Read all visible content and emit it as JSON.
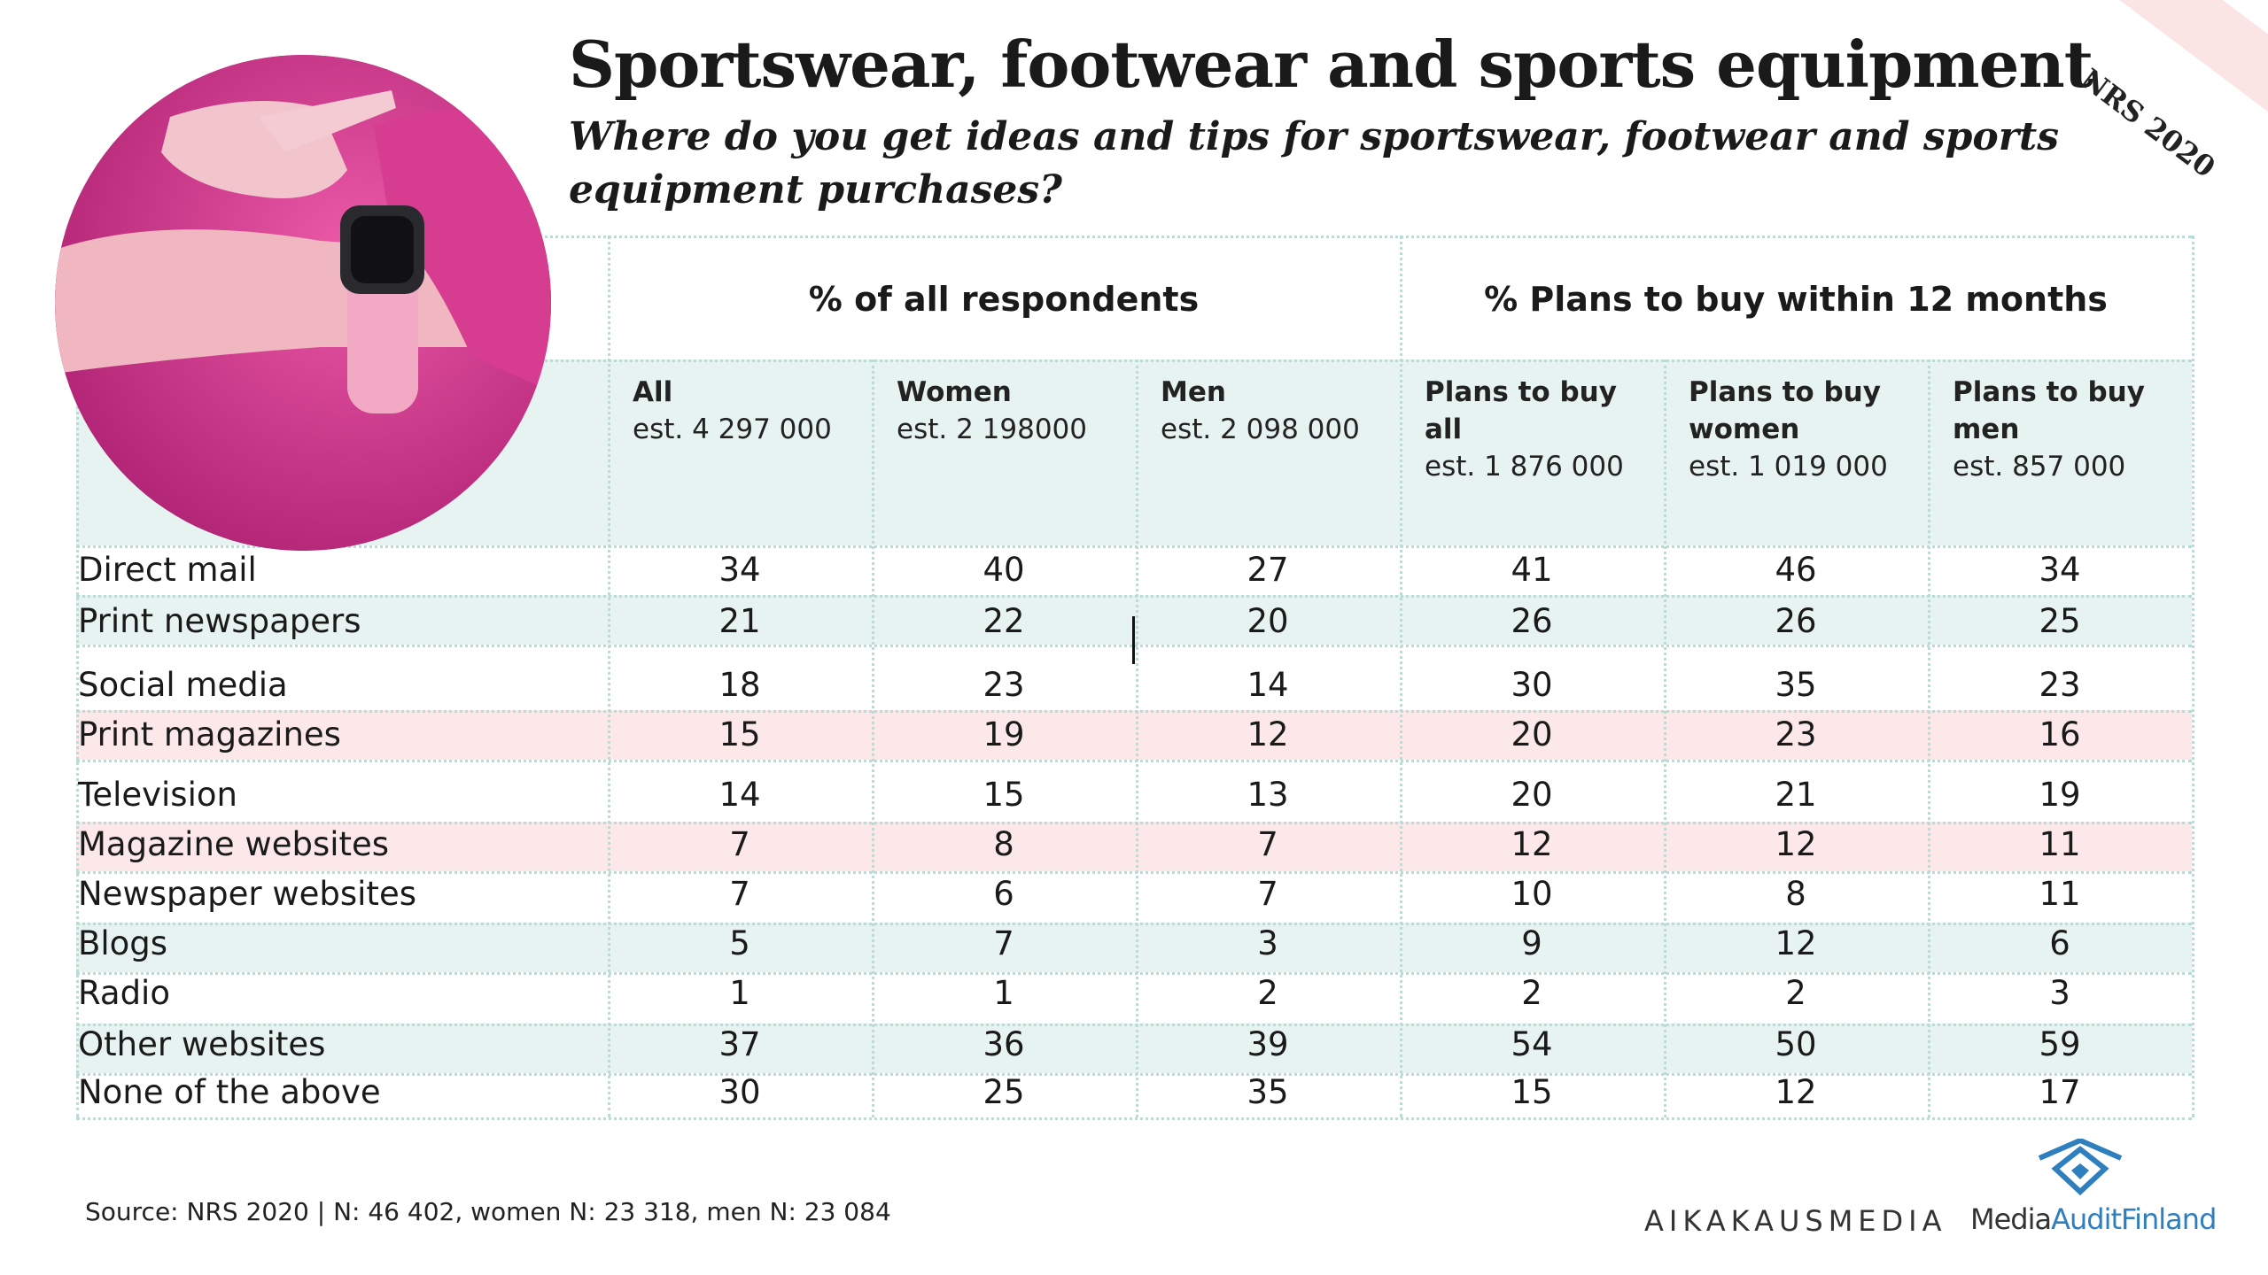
{
  "title": "Sportswear, footwear and sports equipment",
  "subtitle": "Where do you get ideas and tips for sportswear, footwear and sports equipment purchases?",
  "badge": "NRS 2020",
  "groups": {
    "all_respondents": "% of all respondents",
    "plans_to_buy": "% Plans to buy within 12 months"
  },
  "columns": [
    {
      "line1": "All",
      "line2": "",
      "est": "est. 4 297 000"
    },
    {
      "line1": "Women",
      "line2": "",
      "est": "est. 2 198000"
    },
    {
      "line1": "Men",
      "line2": "",
      "est": "est. 2 098 000"
    },
    {
      "line1": "Plans to buy",
      "line2": "all",
      "est": "est. 1 876 000"
    },
    {
      "line1": "Plans to buy",
      "line2": "women",
      "est": "est. 1 019 000"
    },
    {
      "line1": "Plans to buy",
      "line2": "men",
      "est": "est. 857 000"
    }
  ],
  "rows": [
    {
      "label": "Direct mail",
      "values": [
        "34",
        "40",
        "27",
        "41",
        "46",
        "34"
      ]
    },
    {
      "label": "Print newspapers",
      "values": [
        "21",
        "22",
        "20",
        "26",
        "26",
        "25"
      ]
    },
    {
      "label": "Social media",
      "values": [
        "18",
        "23",
        "14",
        "30",
        "35",
        "23"
      ]
    },
    {
      "label": "Print magazines",
      "values": [
        "15",
        "19",
        "12",
        "20",
        "23",
        "16"
      ]
    },
    {
      "label": "Television",
      "values": [
        "14",
        "15",
        "13",
        "20",
        "21",
        "19"
      ]
    },
    {
      "label": "Magazine websites",
      "values": [
        "7",
        "8",
        "7",
        "12",
        "12",
        "11"
      ]
    },
    {
      "label": "Newspaper websites",
      "values": [
        "7",
        "6",
        "7",
        "10",
        "8",
        "11"
      ]
    },
    {
      "label": "Blogs",
      "values": [
        "5",
        "7",
        "3",
        "9",
        "12",
        "6"
      ]
    },
    {
      "label": "Radio",
      "values": [
        "1",
        "1",
        "2",
        "2",
        "2",
        "3"
      ]
    },
    {
      "label": "Other websites",
      "values": [
        "37",
        "36",
        "39",
        "54",
        "50",
        "59"
      ]
    },
    {
      "label": "None of the above",
      "values": [
        "30",
        "25",
        "35",
        "15",
        "12",
        "17"
      ]
    }
  ],
  "source": "Source: NRS 2020 | N: 46 402, women N: 23 318, men N: 23 084",
  "logos": {
    "aikakausmedia": "AIKAKAUSMEDIA",
    "maf_part1": "Media",
    "maf_part2": "Audit",
    "maf_part3": "Finland"
  }
}
